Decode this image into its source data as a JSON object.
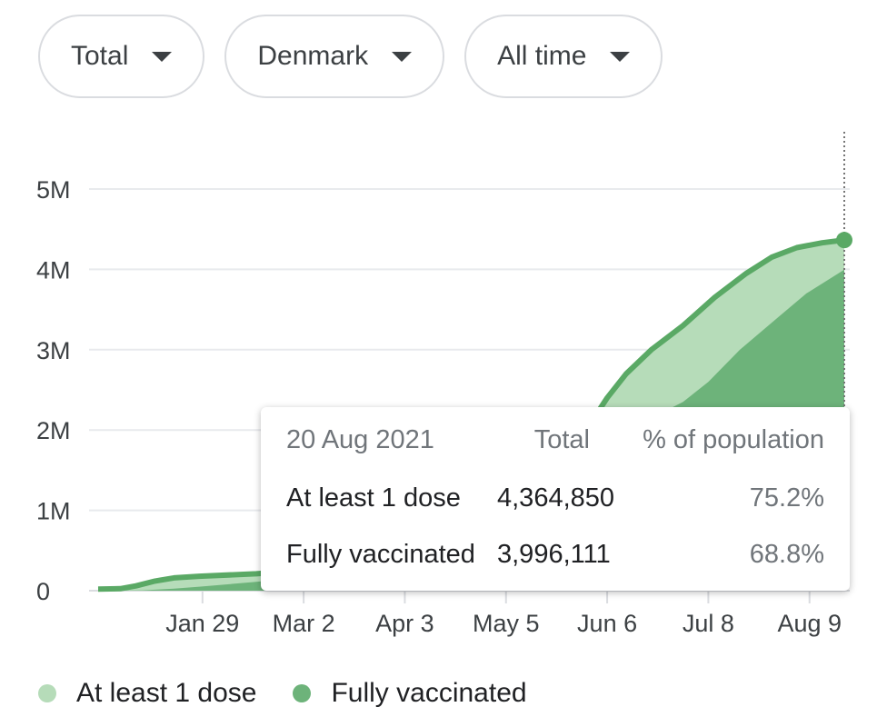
{
  "filters": [
    {
      "label": "Total"
    },
    {
      "label": "Denmark"
    },
    {
      "label": "All time"
    }
  ],
  "colors": {
    "first_dose": "#b6dcb9",
    "fully": "#6db37a",
    "line": "#5aa965",
    "grid": "#e8eaed"
  },
  "chart_data": {
    "type": "area",
    "xlabel": "",
    "ylabel": "",
    "ylim": [
      0,
      5000000
    ],
    "y_ticks": [
      "0",
      "1M",
      "2M",
      "3M",
      "4M",
      "5M"
    ],
    "x_ticks": [
      "Jan 29",
      "Mar 2",
      "Apr 3",
      "May 5",
      "Jun 6",
      "Jul 8",
      "Aug 9"
    ],
    "x_start": "2020-12-27",
    "x_end": "2021-08-20",
    "series": [
      {
        "name": "At least 1 dose",
        "points": [
          [
            "2020-12-27",
            20000
          ],
          [
            "2021-01-03",
            25000
          ],
          [
            "2021-01-08",
            60000
          ],
          [
            "2021-01-14",
            120000
          ],
          [
            "2021-01-20",
            160000
          ],
          [
            "2021-01-28",
            180000
          ],
          [
            "2021-02-15",
            210000
          ],
          [
            "2021-03-05",
            260000
          ],
          [
            "2021-05-25",
            1800000
          ],
          [
            "2021-06-01",
            2100000
          ],
          [
            "2021-06-06",
            2400000
          ],
          [
            "2021-06-12",
            2700000
          ],
          [
            "2021-06-20",
            3000000
          ],
          [
            "2021-06-30",
            3300000
          ],
          [
            "2021-07-10",
            3650000
          ],
          [
            "2021-07-20",
            3950000
          ],
          [
            "2021-07-28",
            4150000
          ],
          [
            "2021-08-05",
            4270000
          ],
          [
            "2021-08-13",
            4330000
          ],
          [
            "2021-08-20",
            4364850
          ]
        ]
      },
      {
        "name": "Fully vaccinated",
        "points": [
          [
            "2020-12-27",
            0
          ],
          [
            "2021-01-10",
            5000
          ],
          [
            "2021-01-20",
            25000
          ],
          [
            "2021-01-28",
            50000
          ],
          [
            "2021-02-15",
            110000
          ],
          [
            "2021-03-05",
            180000
          ],
          [
            "2021-06-20",
            2150000
          ],
          [
            "2021-06-30",
            2350000
          ],
          [
            "2021-07-08",
            2600000
          ],
          [
            "2021-07-18",
            3000000
          ],
          [
            "2021-07-30",
            3400000
          ],
          [
            "2021-08-08",
            3700000
          ],
          [
            "2021-08-20",
            3996111
          ]
        ]
      }
    ],
    "tooltip": {
      "date": "20 Aug 2021",
      "col_total": "Total",
      "col_pct": "% of population",
      "rows": [
        {
          "label": "At least 1 dose",
          "total": "4,364,850",
          "pct": "75.2%"
        },
        {
          "label": "Fully vaccinated",
          "total": "3,996,111",
          "pct": "68.8%"
        }
      ]
    },
    "legend": [
      "At least 1 dose",
      "Fully vaccinated"
    ],
    "grid": true
  }
}
